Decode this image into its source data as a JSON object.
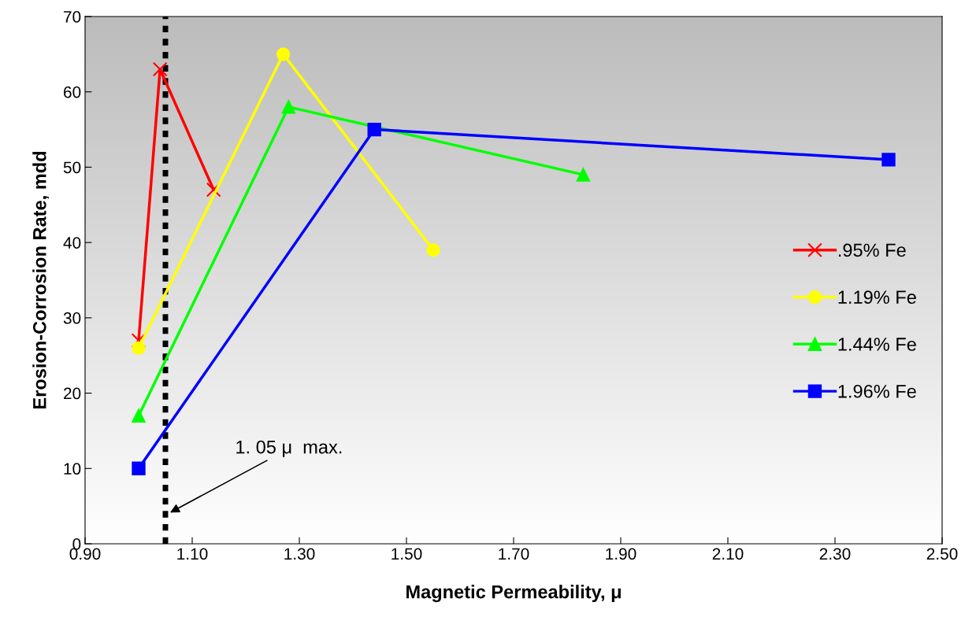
{
  "chart_data": {
    "type": "line",
    "xlabel": "Magnetic Permeability, μ",
    "ylabel": "Erosion-Corrosion Rate, mdd",
    "xlim": [
      0.9,
      2.5
    ],
    "ylim": [
      0,
      70
    ],
    "xticks": [
      {
        "value": 0.9,
        "label": "0.90"
      },
      {
        "value": 1.1,
        "label": "1.10"
      },
      {
        "value": 1.3,
        "label": "1.30"
      },
      {
        "value": 1.5,
        "label": "1.50"
      },
      {
        "value": 1.7,
        "label": "1.70"
      },
      {
        "value": 1.9,
        "label": "1.90"
      },
      {
        "value": 2.1,
        "label": "2.10"
      },
      {
        "value": 2.3,
        "label": "2.30"
      },
      {
        "value": 2.5,
        "label": "2.50"
      }
    ],
    "yticks": [
      0,
      10,
      20,
      30,
      40,
      50,
      60,
      70
    ],
    "grid": false,
    "legend": "right",
    "series": [
      {
        "name": ".95% Fe",
        "color": "#ff0000",
        "marker": "cross",
        "x": [
          1.0,
          1.04,
          1.14
        ],
        "values": [
          27,
          63,
          47
        ]
      },
      {
        "name": "1.19% Fe",
        "color": "#ffff00",
        "marker": "circle",
        "x": [
          1.0,
          1.27,
          1.55
        ],
        "values": [
          26,
          65,
          39
        ]
      },
      {
        "name": "1.44% Fe",
        "color": "#00ff00",
        "marker": "triangle",
        "x": [
          1.0,
          1.28,
          1.83
        ],
        "values": [
          17,
          58,
          49
        ]
      },
      {
        "name": "1.96% Fe",
        "color": "#0000ff",
        "marker": "square",
        "x": [
          1.0,
          1.44,
          2.4
        ],
        "values": [
          10,
          55,
          51
        ]
      }
    ],
    "ref_lines": [
      {
        "axis": "x",
        "value": 1.05,
        "color": "#000000",
        "line_style": "dotted"
      }
    ],
    "annotations": [
      {
        "text": "1. 05 μ  max.",
        "x": 1.055,
        "y": 4
      }
    ]
  }
}
